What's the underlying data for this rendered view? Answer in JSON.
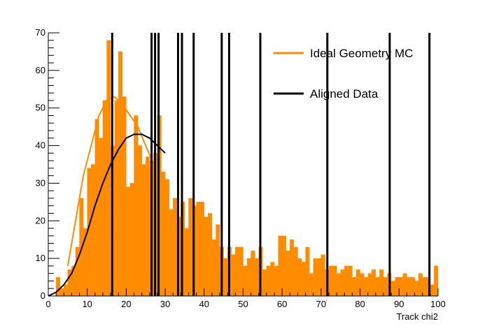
{
  "chart_data": {
    "type": "bar",
    "title": "",
    "xlabel": "Track chi2",
    "ylabel": "",
    "xlim": [
      0,
      100
    ],
    "ylim": [
      0,
      70
    ],
    "x_ticks": [
      0,
      10,
      20,
      30,
      40,
      50,
      60,
      70,
      80,
      90,
      100
    ],
    "y_ticks": [
      0,
      10,
      20,
      30,
      40,
      50,
      60,
      70
    ],
    "grid": false,
    "legend_position": "top-right",
    "colors": {
      "mc": "#ff8c00",
      "data": "#000000"
    },
    "legend": [
      {
        "name": "Ideal Geometry MC",
        "color": "#ff8c00"
      },
      {
        "name": "Aligned Data",
        "color": "#000000"
      }
    ],
    "series": [
      {
        "name": "Ideal Geometry MC",
        "kind": "histogram",
        "bin_width": 1,
        "x_start": 0,
        "values": [
          0,
          0,
          5,
          2,
          3,
          7,
          8,
          13,
          26,
          18,
          34,
          35,
          47,
          42,
          52,
          68,
          40,
          52,
          65,
          53,
          29,
          30,
          48,
          40,
          35,
          37,
          36,
          38,
          48,
          33,
          31,
          23,
          26,
          21,
          25,
          18,
          26,
          24,
          25,
          25,
          21,
          22,
          15,
          19,
          13,
          10,
          13,
          11,
          13,
          13,
          8,
          10,
          12,
          10,
          13,
          7,
          8,
          9,
          8,
          16,
          16,
          12,
          15,
          13,
          10,
          9,
          13,
          6,
          10,
          10,
          11,
          7,
          8,
          8,
          6,
          7,
          8,
          8,
          5,
          7,
          6,
          5,
          6,
          7,
          5,
          7,
          5,
          6,
          4,
          5,
          5,
          6,
          5,
          5,
          4,
          6,
          5,
          5,
          3,
          8,
          5,
          5,
          5,
          5,
          3,
          2,
          5,
          5,
          4,
          5,
          5,
          3,
          8,
          5,
          5,
          5,
          5
        ]
      },
      {
        "name": "Ideal Geometry MC",
        "kind": "fit_line",
        "x": [
          5,
          7,
          9,
          11,
          13,
          15,
          17,
          19,
          21,
          23,
          25,
          27,
          28
        ],
        "values": [
          8,
          20,
          32,
          40,
          48,
          52,
          53,
          51,
          48,
          45,
          40,
          35,
          33
        ]
      },
      {
        "name": "Aligned Data",
        "kind": "fit_line",
        "x": [
          0,
          2,
          4,
          6,
          8,
          10,
          12,
          14,
          16,
          18,
          20,
          22,
          24,
          26,
          28,
          30
        ],
        "values": [
          0,
          1,
          3,
          6,
          11,
          17,
          24,
          30,
          35,
          39,
          42,
          43,
          43,
          42,
          40,
          38
        ]
      },
      {
        "name": "Aligned Data",
        "kind": "vertical_lines",
        "x": [
          16.4,
          26.5,
          27.4,
          28.3,
          33.3,
          34.3,
          37.3,
          44.5,
          46.4,
          54.4,
          71.6,
          87.6,
          97.8
        ]
      }
    ]
  }
}
